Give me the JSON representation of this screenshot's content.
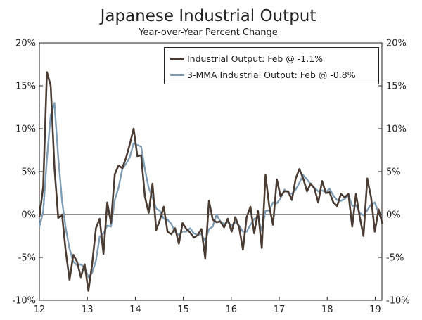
{
  "chart_data": {
    "type": "line",
    "title": "Japanese Industrial Output",
    "subtitle": "Year-over-Year Percent Change",
    "xlabel": "",
    "ylabel": "",
    "x_tick_labels": [
      "12",
      "13",
      "14",
      "15",
      "16",
      "17",
      "18",
      "19"
    ],
    "y_tick_labels": [
      "20%",
      "15%",
      "10%",
      "5%",
      "0%",
      "-5%",
      "-10%"
    ],
    "y_tick_values": [
      20,
      15,
      10,
      5,
      0,
      -5,
      -10
    ],
    "ylim": [
      -10,
      20
    ],
    "x_start_year": 12,
    "x_end_year": 19.15,
    "legend_position": "top-right",
    "grid": false,
    "series": [
      {
        "name": "Industrial Output: Feb @ -1.1%",
        "color": "#4a3c33",
        "values": [
          -0.3,
          3.2,
          16.6,
          15.0,
          5.5,
          -0.4,
          0.0,
          -4.3,
          -7.6,
          -4.7,
          -5.5,
          -7.3,
          -5.8,
          -8.9,
          -5.8,
          -1.6,
          -0.5,
          -4.6,
          1.4,
          -1.0,
          4.7,
          5.7,
          5.4,
          6.6,
          8.2,
          10.0,
          6.8,
          6.9,
          2.1,
          0.2,
          3.6,
          -1.8,
          -0.6,
          0.9,
          -2.0,
          -2.3,
          -1.6,
          -3.4,
          -1.0,
          -1.7,
          -2.1,
          -2.7,
          -2.4,
          -1.7,
          -5.1,
          1.6,
          -0.6,
          -0.9,
          -0.8,
          -1.5,
          -0.5,
          -2.0,
          -0.3,
          -1.5,
          -4.1,
          -0.3,
          0.9,
          -2.2,
          0.4,
          -3.9,
          4.6,
          0.9,
          -1.2,
          4.1,
          2.1,
          2.7,
          2.7,
          1.7,
          4.2,
          5.3,
          4.2,
          2.7,
          3.6,
          3.0,
          1.4,
          3.9,
          2.5,
          2.6,
          1.4,
          1.0,
          2.4,
          2.0,
          2.4,
          -1.4,
          2.4,
          -0.3,
          -2.5,
          4.2,
          2.0,
          -2.0,
          0.6,
          -1.1
        ]
      },
      {
        "name": "3-MMA Industrial Output: Feb @ -0.8%",
        "color": "#7f9db4",
        "values": [
          -1.4,
          0.3,
          6.5,
          11.6,
          13.0,
          6.7,
          1.6,
          -1.6,
          -4.0,
          -5.5,
          -5.9,
          -5.8,
          -6.2,
          -7.3,
          -6.8,
          -5.4,
          -2.6,
          -2.2,
          -1.3,
          -1.4,
          1.7,
          3.1,
          5.3,
          5.9,
          6.7,
          8.3,
          8.1,
          7.9,
          5.3,
          3.1,
          2.0,
          0.7,
          0.4,
          -0.5,
          -0.6,
          -1.1,
          -2.0,
          -2.4,
          -2.0,
          -2.0,
          -1.6,
          -2.2,
          -2.4,
          -2.3,
          -3.1,
          -1.7,
          -1.4,
          0.0,
          -0.8,
          -1.1,
          -0.9,
          -1.3,
          -0.9,
          -1.3,
          -2.0,
          -2.0,
          -1.2,
          -0.5,
          -0.3,
          -1.9,
          0.4,
          0.5,
          1.4,
          1.3,
          1.9,
          2.9,
          2.5,
          2.4,
          2.9,
          3.7,
          4.6,
          4.1,
          3.5,
          3.1,
          2.7,
          2.8,
          2.6,
          3.0,
          2.2,
          1.7,
          1.6,
          1.8,
          2.3,
          1.0,
          1.1,
          0.2,
          -0.1,
          0.5,
          1.2,
          1.4,
          0.2,
          -0.8
        ]
      }
    ]
  }
}
